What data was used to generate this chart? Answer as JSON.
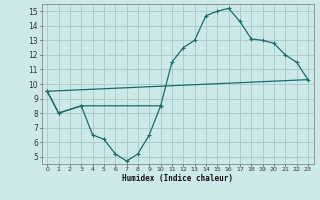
{
  "title": "",
  "xlabel": "Humidex (Indice chaleur)",
  "xlim": [
    -0.5,
    23.5
  ],
  "ylim": [
    4.5,
    15.5
  ],
  "yticks": [
    5,
    6,
    7,
    8,
    9,
    10,
    11,
    12,
    13,
    14,
    15
  ],
  "xticks": [
    0,
    1,
    2,
    3,
    4,
    5,
    6,
    7,
    8,
    9,
    10,
    11,
    12,
    13,
    14,
    15,
    16,
    17,
    18,
    19,
    20,
    21,
    22,
    23
  ],
  "bg_color": "#cde8e8",
  "line_color": "#1a6b6b",
  "grid_color": "#aacccc",
  "curve1_x": [
    0,
    1,
    3,
    10,
    11,
    12,
    13,
    14,
    15,
    16,
    17,
    18,
    19,
    20,
    21,
    22,
    23
  ],
  "curve1_y": [
    9.5,
    8.0,
    8.5,
    8.5,
    11.5,
    12.5,
    13.0,
    14.7,
    15.0,
    15.2,
    14.3,
    13.1,
    13.0,
    12.8,
    12.0,
    11.5,
    10.3
  ],
  "curve2_x": [
    0,
    1,
    3,
    4,
    5,
    6,
    7,
    8,
    9,
    10
  ],
  "curve2_y": [
    9.5,
    8.0,
    8.5,
    6.5,
    6.2,
    5.2,
    4.7,
    5.2,
    6.5,
    8.5
  ],
  "curve3_x": [
    0,
    23
  ],
  "curve3_y": [
    9.5,
    10.3
  ]
}
